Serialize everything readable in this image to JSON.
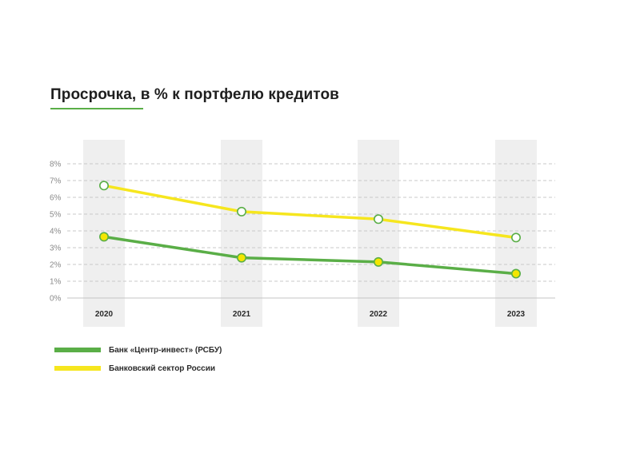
{
  "chart_data": {
    "type": "line",
    "title": "Просрочка, в % к портфелю кредитов",
    "categories": [
      "2020",
      "2021",
      "2022",
      "2023"
    ],
    "y_ticks": [
      "0%",
      "1%",
      "2%",
      "3%",
      "4%",
      "5%",
      "6%",
      "7%",
      "8%"
    ],
    "ylim": [
      0,
      8
    ],
    "series": [
      {
        "name": "Банк «Центр-инвест» (РСБУ)",
        "color": "#5aae47",
        "marker_fill": "#f4e600",
        "values": [
          3.65,
          2.4,
          2.15,
          1.45
        ]
      },
      {
        "name": "Банковский сектор России",
        "color": "#f6e61e",
        "marker_fill": "#ffffff",
        "values": [
          6.7,
          5.15,
          4.7,
          3.6
        ]
      }
    ],
    "grid": true,
    "legend": "bottom-left"
  }
}
